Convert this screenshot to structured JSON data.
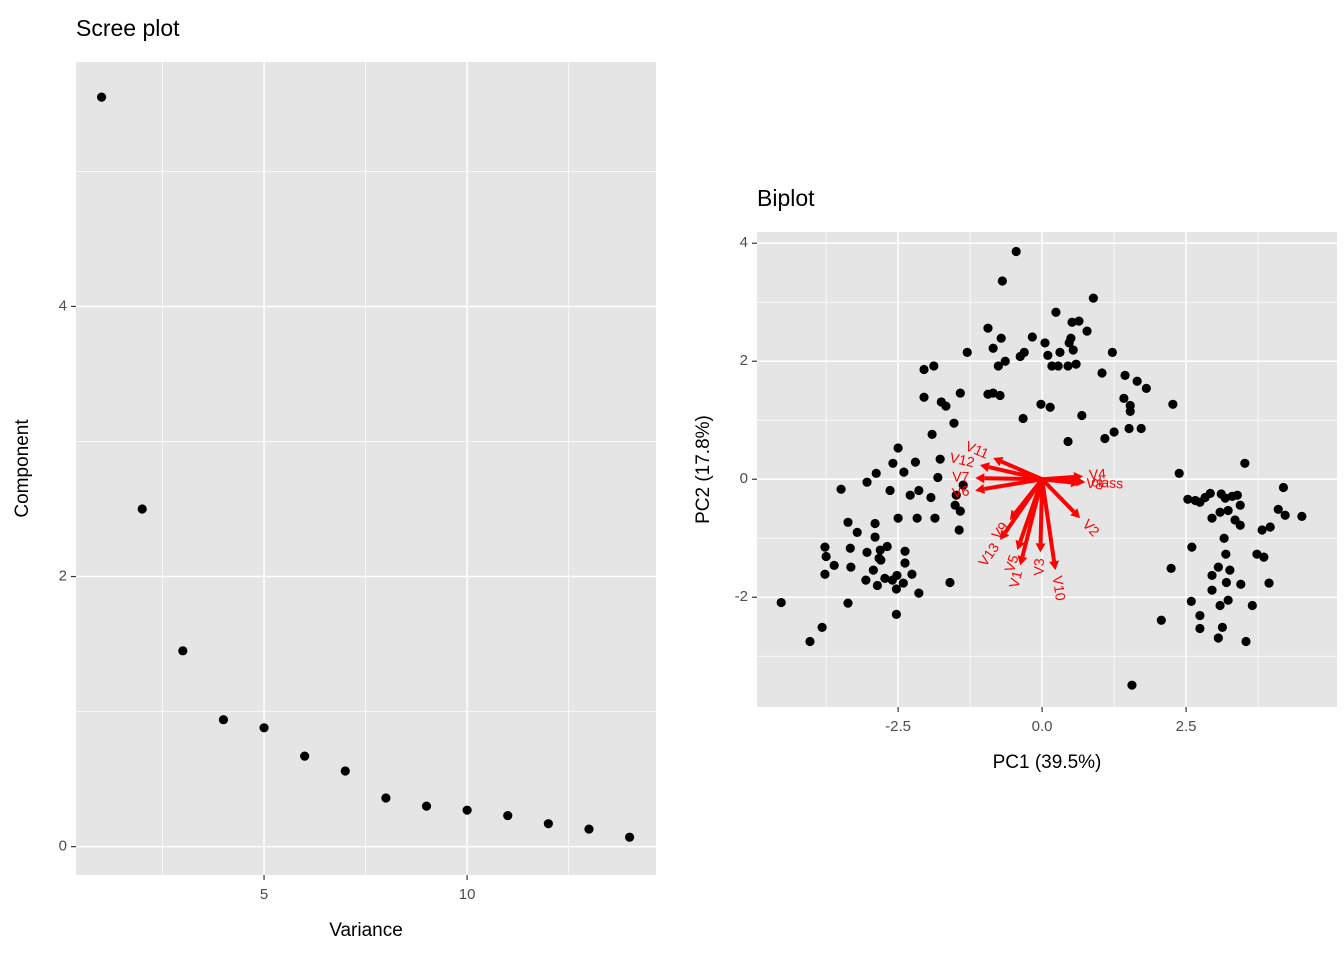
{
  "chart_data": [
    {
      "type": "scatter",
      "title": "Scree plot",
      "x_label": "Variance",
      "y_label": "Component",
      "x": [
        1,
        2,
        3,
        4,
        5,
        6,
        7,
        8,
        9,
        10,
        11,
        12,
        13,
        14
      ],
      "values": [
        5.55,
        2.5,
        1.45,
        0.94,
        0.88,
        0.67,
        0.56,
        0.36,
        0.3,
        0.27,
        0.23,
        0.17,
        0.13,
        0.07
      ],
      "color": "#000000",
      "xlim": [
        0.37,
        14.65
      ],
      "ylim": [
        -0.21,
        5.81
      ],
      "xticks": [
        5,
        10
      ],
      "yticks": [
        0,
        2,
        4
      ],
      "x_minor_grid": [
        2.5,
        7.5,
        12.5
      ],
      "y_minor_grid": [
        1,
        3,
        5
      ],
      "grid": true
    },
    {
      "type": "biplot",
      "title": "Biplot",
      "x_label": "PC1 (39.5%)",
      "y_label": "PC2 (17.8%)",
      "x": [
        3.11,
        3.18,
        3.3,
        3.39,
        2.95,
        3.09,
        3.23,
        3.44,
        3.35,
        3.44,
        3.82,
        3.96,
        4.22,
        4.1,
        4.51,
        2.6,
        3.16,
        3.19,
        3.73,
        3.06,
        3.26,
        3.45,
        3.2,
        3.85,
        3.94,
        2.95,
        2.95,
        3.23,
        3.09,
        3.65,
        2.59,
        2.74,
        2.74,
        3.13,
        3.06,
        3.54,
        2.24,
        2.07,
        1.56,
        -2.88,
        -2.59,
        -2.2,
        -2.4,
        -3.04,
        -2.64,
        -2.29,
        -2.14,
        -3.49,
        -1.93,
        -1.49,
        -1.37,
        -1.51,
        -2.5,
        -2.17,
        -1.86,
        -3.37,
        -2.9,
        -3.21,
        -2.9,
        -3.04,
        -3.33,
        -3.77,
        -3.75,
        -3.61,
        -3.77,
        -3.32,
        -2.81,
        -2.38,
        -2.8,
        -2.93,
        -3.06,
        -2.73,
        -2.52,
        -2.26,
        -2.14,
        -2.53,
        -2.41,
        -3.37,
        -3.82,
        -4.03,
        -4.53,
        -2.86,
        -2.6,
        -2.38,
        -1.44,
        -1.42,
        -1.6,
        -2.53,
        -2.83,
        -2.69,
        -0.45,
        -0.69,
        0.89,
        0.24,
        0.52,
        0.64,
        0.78,
        0.5,
        0.47,
        0.54,
        -0.94,
        -0.71,
        -0.17,
        0.05,
        0.1,
        0.31,
        0.45,
        1.22,
        -0.31,
        -0.38,
        -0.85,
        -1.3,
        -0.64,
        -0.76,
        0.17,
        0.28,
        0.59,
        1.04,
        -2.05,
        -1.88,
        1.44,
        1.65,
        1.81,
        -2.05,
        -1.75,
        -1.67,
        -1.42,
        -0.94,
        -0.85,
        -0.73,
        -0.02,
        0.14,
        1.42,
        1.53,
        1.53,
        2.27,
        0.69,
        -0.33,
        -1.53,
        1.25,
        1.09,
        1.51,
        1.72,
        -1.91,
        0.45,
        -2.5,
        -1.77,
        -1.81,
        3.52,
        2.38,
        4.19,
        2.53,
        2.66,
        2.74,
        2.83,
        2.92
      ],
      "values": [
        -0.25,
        -0.32,
        -0.29,
        -0.27,
        -0.66,
        -0.56,
        -0.53,
        -0.44,
        -0.69,
        -0.78,
        -0.86,
        -0.81,
        -0.61,
        -0.51,
        -0.63,
        -1.15,
        -1.0,
        -1.27,
        -1.27,
        -1.49,
        -1.54,
        -1.78,
        -1.75,
        -1.32,
        -1.76,
        -1.63,
        -1.88,
        -2.05,
        -2.14,
        -2.14,
        -2.07,
        -2.31,
        -2.53,
        -2.51,
        -2.69,
        -2.75,
        -1.51,
        -2.39,
        -3.49,
        0.1,
        0.27,
        0.29,
        0.12,
        -0.05,
        -0.19,
        -0.27,
        -0.19,
        -0.17,
        -0.31,
        -0.27,
        -0.1,
        -0.44,
        -0.66,
        -0.66,
        -0.66,
        -0.73,
        -0.75,
        -0.9,
        -0.98,
        -1.24,
        -1.17,
        -1.15,
        -1.31,
        -1.46,
        -1.61,
        -1.49,
        -1.2,
        -1.22,
        -1.37,
        -1.54,
        -1.71,
        -1.68,
        -1.63,
        -1.61,
        -1.93,
        -1.86,
        -1.76,
        -2.1,
        -2.51,
        -2.75,
        -2.09,
        -1.8,
        -1.71,
        -1.42,
        -0.86,
        -0.54,
        -1.75,
        -2.29,
        -1.34,
        -1.14,
        3.86,
        3.36,
        3.07,
        2.83,
        2.66,
        2.68,
        2.51,
        2.39,
        2.31,
        2.19,
        2.56,
        2.39,
        2.41,
        2.31,
        2.1,
        2.15,
        1.92,
        2.15,
        2.15,
        2.08,
        2.22,
        2.15,
        2.0,
        1.92,
        1.92,
        1.92,
        1.95,
        1.8,
        1.86,
        1.92,
        1.76,
        1.66,
        1.54,
        1.39,
        1.31,
        1.24,
        1.46,
        1.44,
        1.46,
        1.42,
        1.27,
        1.22,
        1.37,
        1.25,
        1.15,
        1.27,
        1.08,
        1.03,
        0.95,
        0.8,
        0.69,
        0.86,
        0.86,
        0.76,
        0.64,
        0.53,
        0.34,
        0.03,
        0.27,
        0.1,
        -0.14,
        -0.34,
        -0.36,
        -0.39,
        -0.31,
        -0.24
      ],
      "color": "#000000",
      "arrows": [
        {
          "label": "V1",
          "x": -0.38,
          "y": -1.46
        },
        {
          "label": "V2",
          "x": 0.66,
          "y": -0.66
        },
        {
          "label": "V3",
          "x": -0.03,
          "y": -1.24
        },
        {
          "label": "V4",
          "x": 0.71,
          "y": 0.05
        },
        {
          "label": "V5",
          "x": -0.43,
          "y": -1.2
        },
        {
          "label": "V6",
          "x": -1.16,
          "y": -0.19
        },
        {
          "label": "V7",
          "x": -1.16,
          "y": 0.02
        },
        {
          "label": "V8",
          "x": 0.66,
          "y": -0.07
        },
        {
          "label": "V9",
          "x": -0.56,
          "y": -0.69
        },
        {
          "label": "V10",
          "x": 0.23,
          "y": -1.54
        },
        {
          "label": "V11",
          "x": -0.85,
          "y": 0.36
        },
        {
          "label": "V12",
          "x": -1.08,
          "y": 0.24
        },
        {
          "label": "V13",
          "x": -0.73,
          "y": -1.03
        },
        {
          "label": "class",
          "x": 0.75,
          "y": -0.05
        }
      ],
      "arrow_color": "#ff0000",
      "xlim": [
        -4.95,
        5.12
      ],
      "ylim": [
        -3.86,
        4.19
      ],
      "xticks": [
        -2.5,
        {
          "value": 0,
          "label": "0.0"
        },
        2.5
      ],
      "yticks": [
        -2,
        0,
        2,
        4
      ],
      "x_minor_grid": [
        -3.75,
        -1.25,
        1.25,
        3.75
      ],
      "y_minor_grid": [
        -3,
        -1,
        1,
        3
      ],
      "grid": true
    }
  ]
}
